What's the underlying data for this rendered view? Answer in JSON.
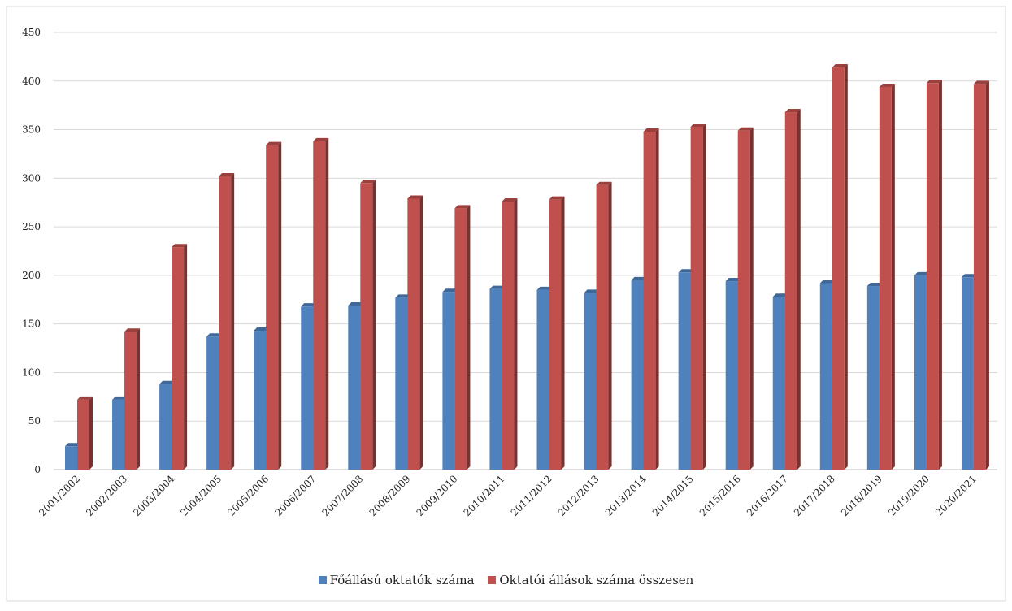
{
  "chart_data": {
    "type": "bar",
    "categories": [
      "2001/2002",
      "2002/2003",
      "2003/2004",
      "2004/2005",
      "2005/2006",
      "2006/2007",
      "2007/2008",
      "2008/2009",
      "2009/2010",
      "2010/2011",
      "2011/2012",
      "2012/2013",
      "2013/2014",
      "2014/2015",
      "2015/2016",
      "2016/2017",
      "2017/2018",
      "2018/2019",
      "2019/2020",
      "2020/2021"
    ],
    "series": [
      {
        "name": "Főállású oktatók száma",
        "color": "#4f81bd",
        "values": [
          24,
          72,
          88,
          137,
          143,
          168,
          169,
          177,
          183,
          186,
          185,
          182,
          195,
          203,
          194,
          178,
          192,
          189,
          200,
          198
        ]
      },
      {
        "name": "Oktatói állások száma összesen",
        "color": "#c0504d",
        "values": [
          72,
          142,
          229,
          302,
          334,
          338,
          295,
          279,
          269,
          276,
          278,
          293,
          348,
          353,
          349,
          368,
          414,
          394,
          398,
          397
        ]
      }
    ],
    "ylim": [
      0,
      450
    ],
    "yticks": [
      0,
      50,
      100,
      150,
      200,
      250,
      300,
      350,
      400,
      450
    ],
    "grid": true,
    "legend_position": "bottom"
  }
}
